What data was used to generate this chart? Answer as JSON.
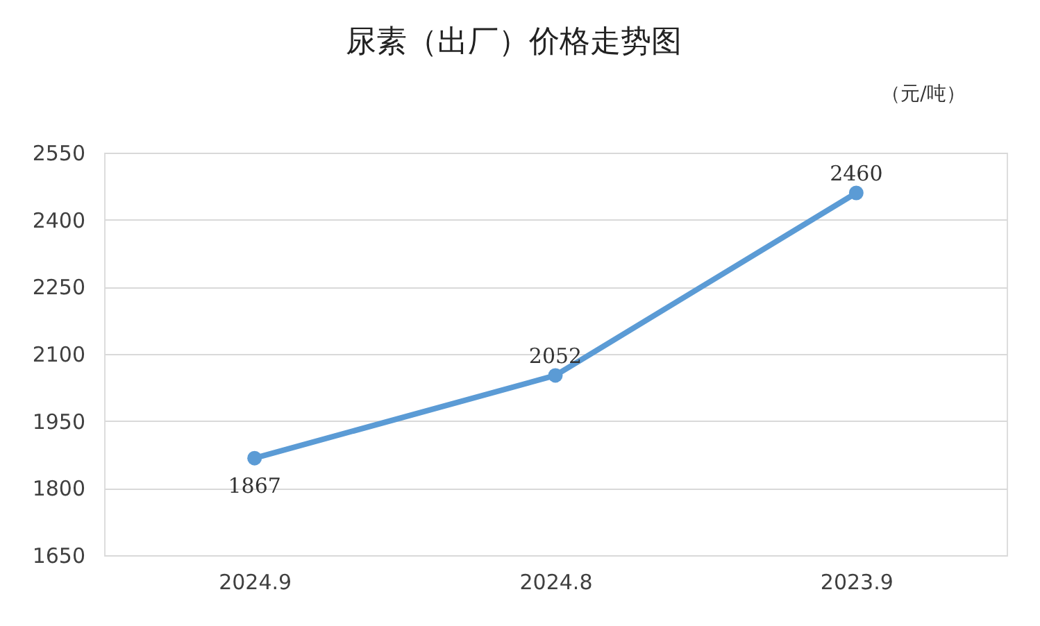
{
  "chart_data": {
    "type": "line",
    "title": "尿素（出厂）价格走势图",
    "annotations": [
      "（元/吨）"
    ],
    "categories": [
      "2024.9",
      "2024.8",
      "2023.9"
    ],
    "series": [
      {
        "color": "#5b9bd5",
        "values": [
          1867,
          2052,
          2460
        ]
      }
    ],
    "ylim": [
      1650,
      2550
    ],
    "yticks": [
      1650,
      1800,
      1950,
      2100,
      2250,
      2400,
      2550
    ],
    "grid": "y",
    "legend": false,
    "marker": "circle",
    "line_style": "solid",
    "data_labels": true
  }
}
